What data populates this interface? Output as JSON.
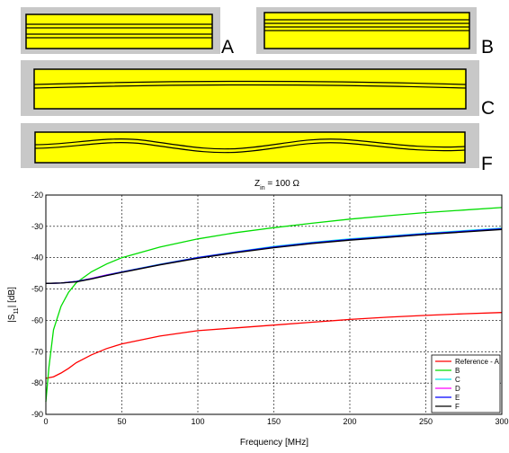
{
  "geometries": [
    {
      "label": "A",
      "shape": "straight-three-conductor",
      "colors": {
        "background": "#c8c8c8",
        "conductor": "#ffff00",
        "outline": "#000000"
      }
    },
    {
      "label": "B",
      "shape": "straight-three-conductor-shifted",
      "colors": {
        "background": "#c8c8c8",
        "conductor": "#ffff00",
        "outline": "#000000"
      }
    },
    {
      "label": "C",
      "shape": "slightly-curved-center-conductor",
      "colors": {
        "background": "#c8c8c8",
        "conductor": "#ffff00",
        "outline": "#000000"
      }
    },
    {
      "label": "F",
      "shape": "wavy-center-conductor",
      "colors": {
        "background": "#c8c8c8",
        "conductor": "#ffff00",
        "outline": "#000000"
      }
    }
  ],
  "chart_data": {
    "type": "line",
    "title_main": "Z",
    "title_sub": "in",
    "title_rest": " = 100 Ω",
    "xlabel": "Frequency [MHz]",
    "ylabel_main": "|S",
    "ylabel_sub": "11",
    "ylabel_rest": "| [dB]",
    "xlim": [
      0,
      300
    ],
    "ylim": [
      -90,
      -20
    ],
    "xticks": [
      "0",
      "50",
      "100",
      "150",
      "200",
      "250",
      "300"
    ],
    "yticks": [
      "-20",
      "-30",
      "-40",
      "-50",
      "-60",
      "-70",
      "-80",
      "-90"
    ],
    "grid": true,
    "legend_position": "bottom-right",
    "series": [
      {
        "name": "Reference - A",
        "color": "#ff0000",
        "x": [
          0,
          5,
          10,
          15,
          20,
          30,
          40,
          50,
          75,
          100,
          125,
          150,
          175,
          200,
          225,
          250,
          275,
          300
        ],
        "y": [
          -78.5,
          -78,
          -76.8,
          -75.3,
          -73.5,
          -71,
          -69,
          -67.5,
          -65,
          -63.3,
          -62.4,
          -61.5,
          -60.6,
          -59.7,
          -59,
          -58.4,
          -57.9,
          -57.5
        ]
      },
      {
        "name": "B",
        "color": "#00dd00",
        "x": [
          0,
          2,
          5,
          10,
          15,
          20,
          30,
          40,
          50,
          75,
          100,
          125,
          150,
          175,
          200,
          225,
          250,
          275,
          300
        ],
        "y": [
          -86,
          -75,
          -63,
          -55.5,
          -51,
          -48,
          -44.5,
          -42,
          -40,
          -36.6,
          -34,
          -32,
          -30.4,
          -29,
          -27.7,
          -26.6,
          -25.6,
          -24.8,
          -24
        ]
      },
      {
        "name": "C",
        "color": "#00e5e5",
        "x": [
          0,
          10,
          20,
          30,
          40,
          50,
          75,
          100,
          125,
          150,
          175,
          200,
          225,
          250,
          275,
          300
        ],
        "y": [
          -48.2,
          -48.1,
          -47.6,
          -46.6,
          -45.5,
          -44.5,
          -42.1,
          -39.9,
          -38.1,
          -36.4,
          -35.1,
          -34,
          -33.1,
          -32.2,
          -31.4,
          -30.6
        ]
      },
      {
        "name": "D",
        "color": "#ff00ff",
        "x": [
          0,
          10,
          20,
          30,
          40,
          50,
          75,
          100,
          125,
          150,
          175,
          200,
          225,
          250,
          275,
          300
        ],
        "y": [
          -48.2,
          -48.1,
          -47.6,
          -46.6,
          -45.5,
          -44.6,
          -42.2,
          -40,
          -38.2,
          -36.6,
          -35.3,
          -34.2,
          -33.3,
          -32.4,
          -31.6,
          -30.8
        ]
      },
      {
        "name": "E",
        "color": "#0000ff",
        "x": [
          0,
          10,
          20,
          30,
          40,
          50,
          75,
          100,
          125,
          150,
          175,
          200,
          225,
          250,
          275,
          300
        ],
        "y": [
          -48.2,
          -48.1,
          -47.6,
          -46.7,
          -45.6,
          -44.6,
          -42.2,
          -40,
          -38.2,
          -36.6,
          -35.3,
          -34.2,
          -33.3,
          -32.4,
          -31.6,
          -30.8
        ]
      },
      {
        "name": "F",
        "color": "#000000",
        "x": [
          0,
          10,
          20,
          30,
          40,
          50,
          75,
          100,
          125,
          150,
          175,
          200,
          225,
          250,
          275,
          300
        ],
        "y": [
          -48.2,
          -48.1,
          -47.7,
          -46.8,
          -45.7,
          -44.7,
          -42.3,
          -40.2,
          -38.4,
          -36.8,
          -35.5,
          -34.4,
          -33.5,
          -32.6,
          -31.8,
          -31
        ]
      }
    ]
  }
}
